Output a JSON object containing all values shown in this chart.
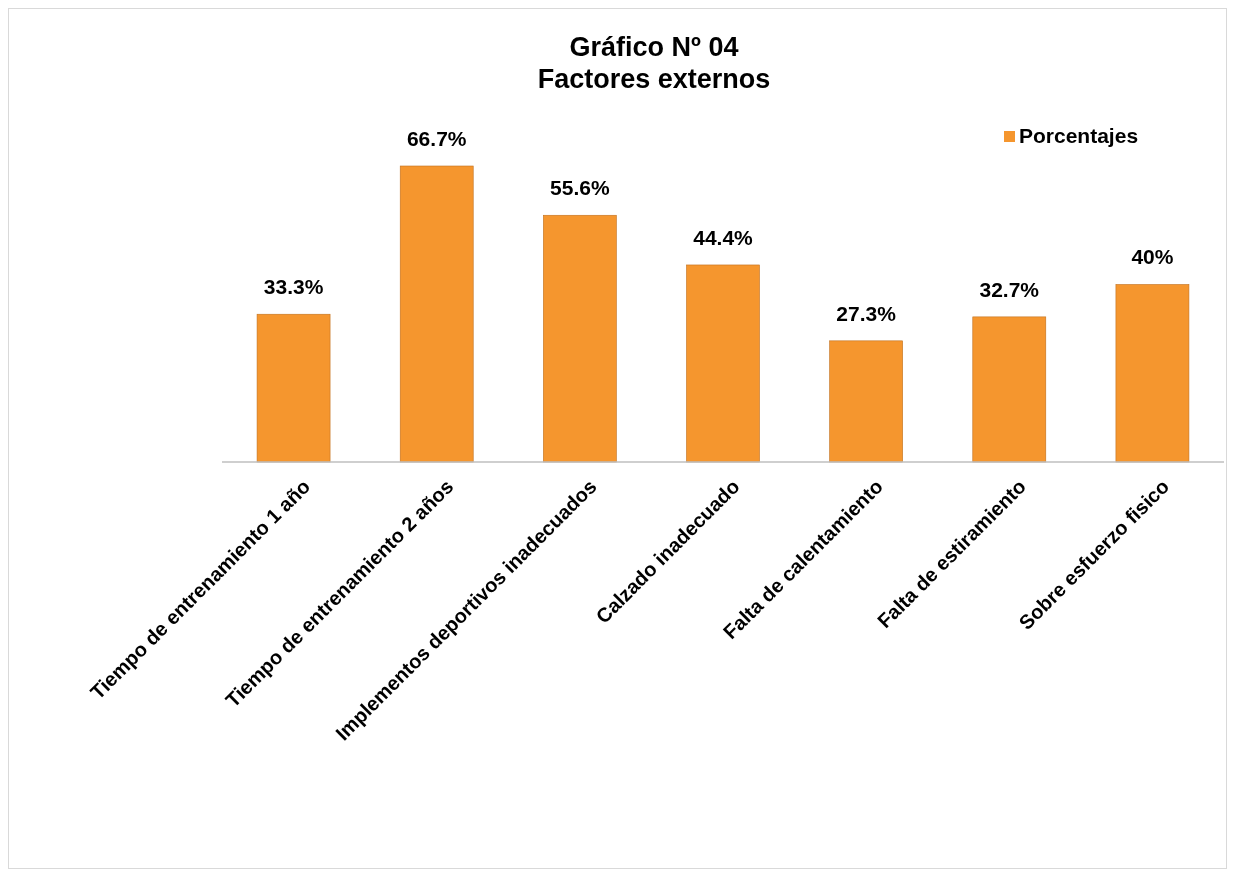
{
  "chart_data": {
    "type": "bar",
    "title": "Gráfico Nº 04\nFactores externos",
    "categories": [
      "Tiempo de entrenamiento 1 año",
      "Tiempo de entrenamiento 2 años",
      "Implementos deportivos inadecuados",
      "Calzado inadecuado",
      "Falta de calentamiento",
      "Falta de estiramiento",
      "Sobre esfuerzo fisico"
    ],
    "series": [
      {
        "name": "Porcentajes",
        "color": "#f5962e",
        "values": [
          33.3,
          66.7,
          55.6,
          44.4,
          27.3,
          32.7,
          40
        ],
        "value_labels": [
          "33.3%",
          "66.7%",
          "55.6%",
          "44.4%",
          "27.3%",
          "32.7%",
          "40%"
        ]
      }
    ],
    "legend": "top right"
  }
}
